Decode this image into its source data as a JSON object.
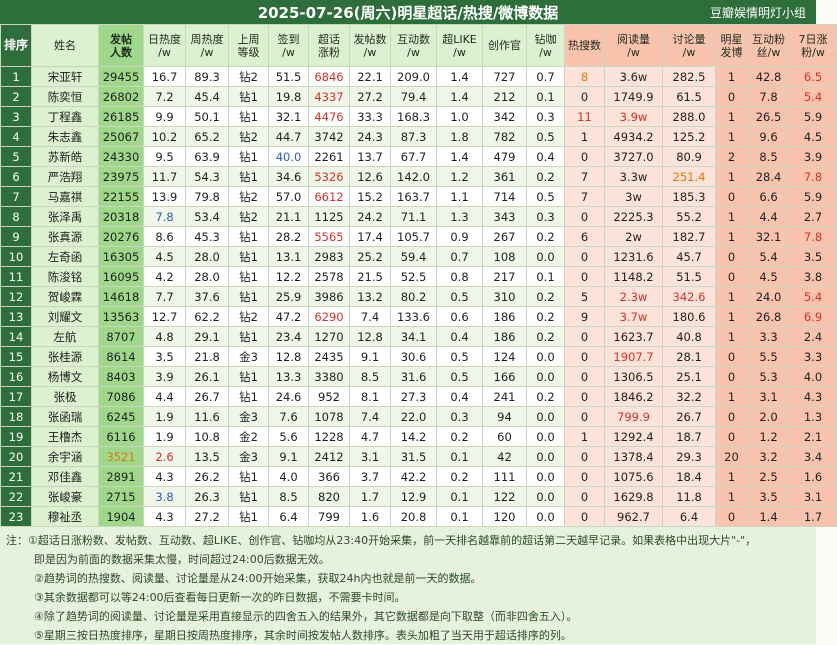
{
  "title": "2025-07-26(周六)明星超话/热搜/微博数据",
  "group": "豆瓣娱情明灯小组",
  "columns": [
    {
      "key": "rank",
      "label1": "排序",
      "label2": "",
      "style": "dark"
    },
    {
      "key": "name",
      "label1": "姓名",
      "label2": "",
      "style": "name"
    },
    {
      "key": "posts",
      "label1": "发帖",
      "label2": "人数",
      "style": "green"
    },
    {
      "key": "daily_heat",
      "label1": "日热度",
      "label2": "/w",
      "style": "plain"
    },
    {
      "key": "weekly_heat",
      "label1": "周热度",
      "label2": "/w",
      "style": "plain"
    },
    {
      "key": "last_week_level",
      "label1": "上周",
      "label2": "等级",
      "style": "plain"
    },
    {
      "key": "checkin",
      "label1": "签到",
      "label2": "/w",
      "style": "plain"
    },
    {
      "key": "topic_fans",
      "label1": "超话",
      "label2": "涨粉",
      "style": "plain"
    },
    {
      "key": "post_count",
      "label1": "发帖数",
      "label2": "/w",
      "style": "plain"
    },
    {
      "key": "interaction",
      "label1": "互动数",
      "label2": "/w",
      "style": "plain"
    },
    {
      "key": "super_like",
      "label1": "超LIKE",
      "label2": "/w",
      "style": "plain"
    },
    {
      "key": "creator",
      "label1": "创作官",
      "label2": "",
      "style": "plain"
    },
    {
      "key": "diamond",
      "label1": "钻咖",
      "label2": "/w",
      "style": "plain"
    },
    {
      "key": "hot_search",
      "label1": "热搜数",
      "label2": "",
      "style": "pk1"
    },
    {
      "key": "reads",
      "label1": "阅读量",
      "label2": "/w",
      "style": "pk1"
    },
    {
      "key": "discuss",
      "label1": "讨论量",
      "label2": "/w",
      "style": "pk1"
    },
    {
      "key": "star_weibo",
      "label1": "明星",
      "label2": "发博",
      "style": "pk2"
    },
    {
      "key": "weibo_interact",
      "label1": "互动粉",
      "label2": "丝/w",
      "style": "pk2"
    },
    {
      "key": "weekly_gain",
      "label1": "7日涨",
      "label2": "粉/w",
      "style": "pk2"
    }
  ],
  "rows": [
    {
      "rank": "1",
      "name": "宋亚轩",
      "posts": "29455",
      "daily_heat": "16.7",
      "weekly_heat": "89.3",
      "last_week_level": "钻2",
      "checkin": "51.5",
      "topic_fans": "6846",
      "post_count": "22.1",
      "interaction": "209.0",
      "super_like": "1.4",
      "creator": "727",
      "diamond": "0.7",
      "hot_search": "8",
      "reads": "3.6w",
      "discuss": "282.5",
      "star_weibo": "1",
      "weibo_interact": "42.8",
      "weekly_gain": "6.5"
    },
    {
      "rank": "2",
      "name": "陈奕恒",
      "posts": "26802",
      "daily_heat": "7.2",
      "weekly_heat": "45.4",
      "last_week_level": "钻1",
      "checkin": "19.8",
      "topic_fans": "4337",
      "post_count": "27.2",
      "interaction": "79.4",
      "super_like": "1.4",
      "creator": "212",
      "diamond": "0.1",
      "hot_search": "0",
      "reads": "1749.9",
      "discuss": "61.5",
      "star_weibo": "0",
      "weibo_interact": "7.8",
      "weekly_gain": "5.4"
    },
    {
      "rank": "3",
      "name": "丁程鑫",
      "posts": "26185",
      "daily_heat": "9.9",
      "weekly_heat": "50.1",
      "last_week_level": "钻1",
      "checkin": "32.1",
      "topic_fans": "4476",
      "post_count": "33.3",
      "interaction": "168.3",
      "super_like": "1.0",
      "creator": "342",
      "diamond": "0.3",
      "hot_search": "11",
      "reads": "3.9w",
      "discuss": "288.0",
      "star_weibo": "1",
      "weibo_interact": "26.5",
      "weekly_gain": "5.9"
    },
    {
      "rank": "4",
      "name": "朱志鑫",
      "posts": "25067",
      "daily_heat": "10.2",
      "weekly_heat": "65.2",
      "last_week_level": "钻2",
      "checkin": "44.7",
      "topic_fans": "3742",
      "post_count": "24.3",
      "interaction": "87.3",
      "super_like": "1.8",
      "creator": "782",
      "diamond": "0.5",
      "hot_search": "1",
      "reads": "4934.2",
      "discuss": "125.2",
      "star_weibo": "1",
      "weibo_interact": "9.6",
      "weekly_gain": "4.5"
    },
    {
      "rank": "5",
      "name": "苏新皓",
      "posts": "24330",
      "daily_heat": "9.5",
      "weekly_heat": "63.9",
      "last_week_level": "钻1",
      "checkin": "40.0",
      "topic_fans": "2261",
      "post_count": "13.7",
      "interaction": "67.7",
      "super_like": "1.4",
      "creator": "479",
      "diamond": "0.4",
      "hot_search": "0",
      "reads": "3727.0",
      "discuss": "80.9",
      "star_weibo": "2",
      "weibo_interact": "8.5",
      "weekly_gain": "3.9"
    },
    {
      "rank": "6",
      "name": "严浩翔",
      "posts": "23975",
      "daily_heat": "11.7",
      "weekly_heat": "54.3",
      "last_week_level": "钻1",
      "checkin": "34.6",
      "topic_fans": "5326",
      "post_count": "12.6",
      "interaction": "142.0",
      "super_like": "1.2",
      "creator": "361",
      "diamond": "0.2",
      "hot_search": "7",
      "reads": "3.3w",
      "discuss": "251.4",
      "star_weibo": "1",
      "weibo_interact": "28.4",
      "weekly_gain": "7.8"
    },
    {
      "rank": "7",
      "name": "马嘉祺",
      "posts": "22155",
      "daily_heat": "13.9",
      "weekly_heat": "79.8",
      "last_week_level": "钻2",
      "checkin": "57.0",
      "topic_fans": "6612",
      "post_count": "15.2",
      "interaction": "163.7",
      "super_like": "1.1",
      "creator": "714",
      "diamond": "0.5",
      "hot_search": "7",
      "reads": "3w",
      "discuss": "185.3",
      "star_weibo": "0",
      "weibo_interact": "6.6",
      "weekly_gain": "5.9"
    },
    {
      "rank": "8",
      "name": "张泽禹",
      "posts": "20318",
      "daily_heat": "7.8",
      "weekly_heat": "53.4",
      "last_week_level": "钻2",
      "checkin": "21.1",
      "topic_fans": "1125",
      "post_count": "24.2",
      "interaction": "71.1",
      "super_like": "1.3",
      "creator": "343",
      "diamond": "0.3",
      "hot_search": "0",
      "reads": "2225.3",
      "discuss": "55.2",
      "star_weibo": "1",
      "weibo_interact": "4.4",
      "weekly_gain": "2.7"
    },
    {
      "rank": "9",
      "name": "张真源",
      "posts": "20276",
      "daily_heat": "8.6",
      "weekly_heat": "45.3",
      "last_week_level": "钻1",
      "checkin": "28.2",
      "topic_fans": "5565",
      "post_count": "17.4",
      "interaction": "105.7",
      "super_like": "0.9",
      "creator": "267",
      "diamond": "0.2",
      "hot_search": "6",
      "reads": "2w",
      "discuss": "182.7",
      "star_weibo": "1",
      "weibo_interact": "32.1",
      "weekly_gain": "7.8"
    },
    {
      "rank": "10",
      "name": "左奇函",
      "posts": "16305",
      "daily_heat": "4.5",
      "weekly_heat": "28.0",
      "last_week_level": "钻1",
      "checkin": "13.1",
      "topic_fans": "2983",
      "post_count": "25.2",
      "interaction": "59.4",
      "super_like": "0.7",
      "creator": "108",
      "diamond": "0.0",
      "hot_search": "0",
      "reads": "1231.6",
      "discuss": "45.7",
      "star_weibo": "0",
      "weibo_interact": "5.4",
      "weekly_gain": "3.5"
    },
    {
      "rank": "11",
      "name": "陈浚铭",
      "posts": "16095",
      "daily_heat": "4.2",
      "weekly_heat": "28.0",
      "last_week_level": "钻1",
      "checkin": "12.2",
      "topic_fans": "2578",
      "post_count": "21.5",
      "interaction": "52.5",
      "super_like": "0.8",
      "creator": "217",
      "diamond": "0.1",
      "hot_search": "0",
      "reads": "1148.2",
      "discuss": "51.5",
      "star_weibo": "0",
      "weibo_interact": "4.5",
      "weekly_gain": "3.8"
    },
    {
      "rank": "12",
      "name": "贺峻霖",
      "posts": "14618",
      "daily_heat": "7.7",
      "weekly_heat": "37.6",
      "last_week_level": "钻1",
      "checkin": "25.9",
      "topic_fans": "3986",
      "post_count": "13.2",
      "interaction": "80.2",
      "super_like": "0.5",
      "creator": "310",
      "diamond": "0.2",
      "hot_search": "5",
      "reads": "2.3w",
      "discuss": "342.6",
      "star_weibo": "1",
      "weibo_interact": "24.0",
      "weekly_gain": "5.4"
    },
    {
      "rank": "13",
      "name": "刘耀文",
      "posts": "13563",
      "daily_heat": "12.7",
      "weekly_heat": "62.2",
      "last_week_level": "钻2",
      "checkin": "47.2",
      "topic_fans": "6290",
      "post_count": "7.4",
      "interaction": "133.6",
      "super_like": "0.6",
      "creator": "186",
      "diamond": "0.2",
      "hot_search": "9",
      "reads": "3.7w",
      "discuss": "180.6",
      "star_weibo": "1",
      "weibo_interact": "26.8",
      "weekly_gain": "6.9"
    },
    {
      "rank": "14",
      "name": "左航",
      "posts": "8707",
      "daily_heat": "4.8",
      "weekly_heat": "29.1",
      "last_week_level": "钻1",
      "checkin": "23.4",
      "topic_fans": "1270",
      "post_count": "12.8",
      "interaction": "34.1",
      "super_like": "0.4",
      "creator": "186",
      "diamond": "0.2",
      "hot_search": "0",
      "reads": "1623.7",
      "discuss": "40.8",
      "star_weibo": "1",
      "weibo_interact": "3.3",
      "weekly_gain": "2.4"
    },
    {
      "rank": "15",
      "name": "张桂源",
      "posts": "8614",
      "daily_heat": "3.5",
      "weekly_heat": "21.8",
      "last_week_level": "金3",
      "checkin": "12.8",
      "topic_fans": "2435",
      "post_count": "9.1",
      "interaction": "30.6",
      "super_like": "0.5",
      "creator": "124",
      "diamond": "0.0",
      "hot_search": "0",
      "reads": "1907.7",
      "discuss": "28.1",
      "star_weibo": "0",
      "weibo_interact": "5.5",
      "weekly_gain": "3.3"
    },
    {
      "rank": "16",
      "name": "杨博文",
      "posts": "8403",
      "daily_heat": "3.9",
      "weekly_heat": "26.1",
      "last_week_level": "钻1",
      "checkin": "13.3",
      "topic_fans": "3380",
      "post_count": "8.5",
      "interaction": "31.6",
      "super_like": "0.5",
      "creator": "166",
      "diamond": "0.0",
      "hot_search": "0",
      "reads": "1306.5",
      "discuss": "25.1",
      "star_weibo": "0",
      "weibo_interact": "5.3",
      "weekly_gain": "4.0"
    },
    {
      "rank": "17",
      "name": "张极",
      "posts": "7086",
      "daily_heat": "4.4",
      "weekly_heat": "26.7",
      "last_week_level": "钻1",
      "checkin": "24.6",
      "topic_fans": "952",
      "post_count": "8.1",
      "interaction": "27.3",
      "super_like": "0.4",
      "creator": "241",
      "diamond": "0.2",
      "hot_search": "0",
      "reads": "1846.2",
      "discuss": "32.2",
      "star_weibo": "1",
      "weibo_interact": "3.1",
      "weekly_gain": "4.3"
    },
    {
      "rank": "18",
      "name": "张函瑞",
      "posts": "6245",
      "daily_heat": "1.9",
      "weekly_heat": "11.6",
      "last_week_level": "金3",
      "checkin": "7.6",
      "topic_fans": "1078",
      "post_count": "7.4",
      "interaction": "22.0",
      "super_like": "0.3",
      "creator": "94",
      "diamond": "0.0",
      "hot_search": "0",
      "reads": "799.9",
      "discuss": "26.7",
      "star_weibo": "0",
      "weibo_interact": "2.0",
      "weekly_gain": "1.3"
    },
    {
      "rank": "19",
      "name": "王橹杰",
      "posts": "6116",
      "daily_heat": "1.9",
      "weekly_heat": "10.8",
      "last_week_level": "金2",
      "checkin": "5.6",
      "topic_fans": "1228",
      "post_count": "4.7",
      "interaction": "14.2",
      "super_like": "0.2",
      "creator": "60",
      "diamond": "0.0",
      "hot_search": "1",
      "reads": "1292.4",
      "discuss": "18.7",
      "star_weibo": "0",
      "weibo_interact": "1.2",
      "weekly_gain": "2.1"
    },
    {
      "rank": "20",
      "name": "余宇涵",
      "posts": "3521",
      "daily_heat": "2.6",
      "weekly_heat": "13.5",
      "last_week_level": "金3",
      "checkin": "9.1",
      "topic_fans": "2412",
      "post_count": "3.1",
      "interaction": "31.5",
      "super_like": "0.1",
      "creator": "42",
      "diamond": "0.0",
      "hot_search": "0",
      "reads": "1378.4",
      "discuss": "29.3",
      "star_weibo": "20",
      "weibo_interact": "3.2",
      "weekly_gain": "3.4"
    },
    {
      "rank": "21",
      "name": "邓佳鑫",
      "posts": "2891",
      "daily_heat": "4.3",
      "weekly_heat": "26.2",
      "last_week_level": "钻1",
      "checkin": "4.0",
      "topic_fans": "366",
      "post_count": "3.7",
      "interaction": "42.2",
      "super_like": "0.2",
      "creator": "111",
      "diamond": "0.0",
      "hot_search": "0",
      "reads": "1075.6",
      "discuss": "18.4",
      "star_weibo": "1",
      "weibo_interact": "2.5",
      "weekly_gain": "1.6"
    },
    {
      "rank": "22",
      "name": "张峻豪",
      "posts": "2715",
      "daily_heat": "3.8",
      "weekly_heat": "26.3",
      "last_week_level": "钻1",
      "checkin": "8.5",
      "topic_fans": "820",
      "post_count": "1.7",
      "interaction": "12.9",
      "super_like": "0.1",
      "creator": "122",
      "diamond": "0.0",
      "hot_search": "0",
      "reads": "1629.8",
      "discuss": "11.8",
      "star_weibo": "1",
      "weibo_interact": "3.5",
      "weekly_gain": "3.1"
    },
    {
      "rank": "23",
      "name": "穆祉丞",
      "posts": "1904",
      "daily_heat": "4.3",
      "weekly_heat": "27.2",
      "last_week_level": "钻1",
      "checkin": "6.4",
      "topic_fans": "799",
      "post_count": "1.6",
      "interaction": "20.8",
      "super_like": "0.1",
      "creator": "120",
      "diamond": "0.0",
      "hot_search": "0",
      "reads": "962.7",
      "discuss": "6.4",
      "star_weibo": "0",
      "weibo_interact": "1.4",
      "weekly_gain": "1.7"
    }
  ],
  "highlights": {
    "red": [
      [
        0,
        "topic_fans"
      ],
      [
        0,
        "weekly_gain"
      ],
      [
        1,
        "topic_fans"
      ],
      [
        1,
        "weekly_gain"
      ],
      [
        2,
        "topic_fans"
      ],
      [
        2,
        "hot_search"
      ],
      [
        2,
        "reads"
      ],
      [
        5,
        "topic_fans"
      ],
      [
        5,
        "weekly_gain"
      ],
      [
        6,
        "topic_fans"
      ],
      [
        8,
        "topic_fans"
      ],
      [
        8,
        "weekly_gain"
      ],
      [
        11,
        "reads"
      ],
      [
        11,
        "discuss"
      ],
      [
        11,
        "weekly_gain"
      ],
      [
        12,
        "topic_fans"
      ],
      [
        12,
        "reads"
      ],
      [
        12,
        "weekly_gain"
      ],
      [
        14,
        "reads"
      ],
      [
        17,
        "reads"
      ],
      [
        19,
        "daily_heat"
      ]
    ],
    "orange": [
      [
        0,
        "hot_search"
      ],
      [
        5,
        "discuss"
      ],
      [
        19,
        "posts"
      ]
    ],
    "blue": [
      [
        4,
        "checkin"
      ],
      [
        7,
        "daily_heat"
      ],
      [
        21,
        "daily_heat"
      ]
    ]
  },
  "notes": [
    "注：①超话日涨粉数、发帖数、互动数、超LIKE、创作官、钻咖均从23:40开始采集，前一天排名越靠前的超话第二天越早记录。如果表格中出现大片\"-\"，",
    "即是因为前面的数据采集太慢，时间超过24:00后数据无效。",
    "②趋势词的热搜数、阅读量、讨论量是从24:00开始采集，获取24h内也就是前一天的数据。",
    "③其余数据都可以等24:00后查看每日更新一次的昨日数据，不需要卡时间。",
    "④除了趋势词的阅读量、讨论量是采用直接显示的四舍五入的结果外，其它数据都是向下取整（而非四舍五入）。",
    "⑤星期三按日热度排序，星期日按周热度排序，其余时间按发帖人数排序。表头加粗了当天用于超话排序的列。"
  ]
}
